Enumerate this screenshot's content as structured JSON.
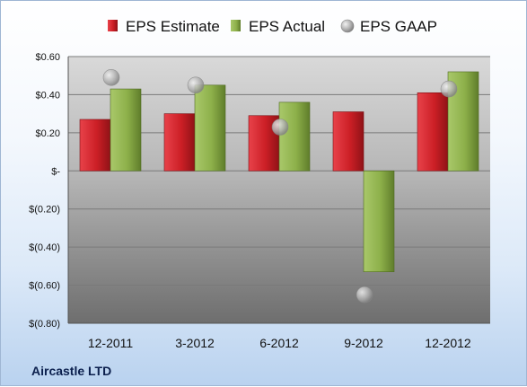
{
  "company": "Aircastle LTD",
  "chart_data": {
    "type": "bar",
    "categories": [
      "12-2011",
      "3-2012",
      "6-2012",
      "9-2012",
      "12-2012"
    ],
    "series": [
      {
        "name": "EPS Estimate",
        "type": "bar",
        "color": "#cc1f26",
        "values": [
          0.27,
          0.3,
          0.29,
          0.31,
          0.41
        ]
      },
      {
        "name": "EPS Actual",
        "type": "bar",
        "color": "#8db04a",
        "values": [
          0.43,
          0.45,
          0.36,
          -0.53,
          0.52
        ]
      },
      {
        "name": "EPS GAAP",
        "type": "scatter",
        "color": "#a7a7a7",
        "values": [
          0.49,
          0.45,
          0.23,
          -0.65,
          0.43
        ]
      }
    ],
    "ylim": [
      -0.8,
      0.6
    ],
    "yticks": [
      0.6,
      0.4,
      0.2,
      0,
      -0.2,
      -0.4,
      -0.6,
      -0.8
    ],
    "ytick_labels": [
      "$0.60",
      "$0.40",
      "$0.20",
      "$-",
      "$(0.20)",
      "$(0.40)",
      "$(0.60)",
      "$(0.80)"
    ],
    "grid": true,
    "legend": "top"
  }
}
